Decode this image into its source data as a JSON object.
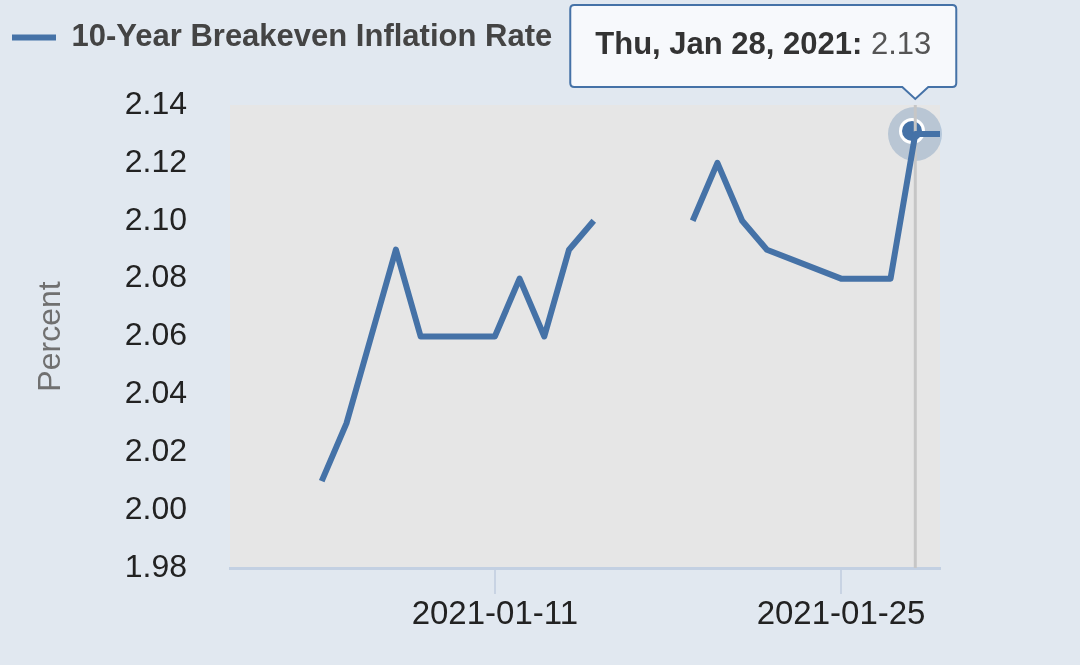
{
  "chart_data": {
    "type": "line",
    "legend": "top left",
    "ylabel": "Percent",
    "x": [
      "2021-01-04",
      "2021-01-05",
      "2021-01-06",
      "2021-01-07",
      "2021-01-08",
      "2021-01-11",
      "2021-01-12",
      "2021-01-13",
      "2021-01-14",
      "2021-01-15",
      "2021-01-18",
      "2021-01-19",
      "2021-01-20",
      "2021-01-21",
      "2021-01-22",
      "2021-01-25",
      "2021-01-26",
      "2021-01-27",
      "2021-01-28",
      "2021-01-29"
    ],
    "series": [
      {
        "name": "10-Year Breakeven Inflation Rate",
        "color": "#4572a7",
        "values": [
          2.01,
          2.03,
          2.06,
          2.09,
          2.06,
          2.06,
          2.08,
          2.06,
          2.09,
          2.1,
          null,
          2.1,
          2.12,
          2.1,
          2.09,
          2.08,
          2.08,
          2.08,
          2.13,
          2.13
        ]
      }
    ],
    "xlim": [
      "2020-12-31T07:00",
      "2021-01-29"
    ],
    "xticks": [
      "2021-01-11",
      "2021-01-25"
    ],
    "ylim": [
      1.98,
      2.14
    ],
    "yticks": [
      1.98,
      {
        "value": 2,
        "label": "2.00"
      },
      2.02,
      2.04,
      2.06,
      2.08,
      {
        "value": 2.1,
        "label": "2.10"
      },
      2.12,
      2.14
    ],
    "grid": false,
    "marker": "none",
    "line_style": "solid",
    "ref_lines": [
      {
        "axis": "x",
        "value": "2021-01-28",
        "color": "#c6c6c6"
      }
    ],
    "annotations": [
      {
        "text": "Thu, Jan 28, 2021: 2.13",
        "x": "2021-01-28",
        "y": 2.13
      }
    ]
  }
}
